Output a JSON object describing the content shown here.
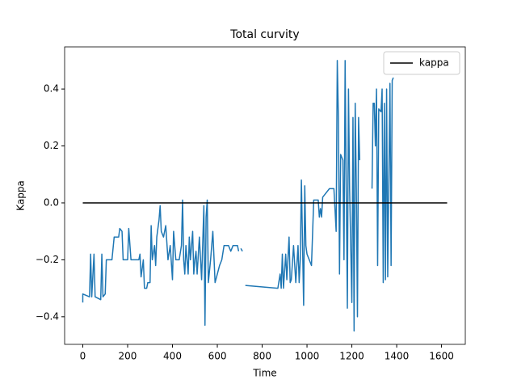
{
  "chart_data": {
    "type": "line",
    "title": "Total curvity",
    "x_label": "Time",
    "y_label": "Kappa",
    "xlim": [
      -81,
      1706
    ],
    "ylim": [
      -0.497,
      0.548
    ],
    "xticks": [
      0,
      200,
      400,
      600,
      800,
      1000,
      1200,
      1400,
      1600
    ],
    "yticks": [
      {
        "value": -0.4,
        "label": "−0.4"
      },
      {
        "value": -0.2,
        "label": "−0.2"
      },
      {
        "value": 0,
        "label": "0.0"
      },
      0.2,
      0.4
    ],
    "legend": "upper right",
    "grid": false,
    "series": [
      {
        "color": "#1f77b4",
        "x": [
          0,
          0,
          30,
          35,
          40,
          50,
          55,
          80,
          85,
          90,
          100,
          105,
          130,
          140,
          160,
          165,
          175,
          180,
          200,
          205,
          215,
          250,
          255,
          260,
          270,
          275,
          285,
          290,
          300,
          305,
          310,
          320,
          325,
          330,
          340,
          345,
          350,
          360,
          370,
          380,
          390,
          400,
          405,
          415,
          430,
          440,
          445,
          450,
          455,
          460,
          470,
          475,
          480,
          490,
          495,
          500,
          505,
          510,
          520,
          530,
          540,
          545,
          550,
          555,
          560,
          570,
          580,
          590,
          600,
          610,
          620,
          630,
          650,
          660,
          670,
          690,
          695,
          700,
          705,
          712,
          718,
          725,
          870,
          880,
          885,
          890,
          895,
          905,
          910,
          920,
          925,
          930,
          940,
          950,
          960,
          965,
          970,
          975,
          985,
          990,
          995,
          1000,
          1010,
          1020,
          1030,
          1040,
          1050,
          1055,
          1060,
          1065,
          1070,
          1100,
          1120,
          1130,
          1135,
          1140,
          1145,
          1150,
          1160,
          1165,
          1170,
          1175,
          1180,
          1185,
          1190,
          1200,
          1205,
          1210,
          1215,
          1220,
          1225,
          1230,
          1235,
          1260,
          1290,
          1295,
          1300,
          1305,
          1310,
          1315,
          1320,
          1330,
          1335,
          1340,
          1345,
          1350,
          1355,
          1360,
          1370,
          1375,
          1380,
          1385
        ],
        "values": [
          -0.35,
          -0.32,
          -0.33,
          -0.18,
          -0.33,
          -0.18,
          -0.33,
          -0.34,
          -0.18,
          -0.33,
          -0.32,
          -0.2,
          -0.2,
          -0.12,
          -0.12,
          -0.09,
          -0.1,
          -0.2,
          -0.2,
          -0.09,
          -0.2,
          -0.2,
          -0.18,
          -0.26,
          -0.2,
          -0.3,
          -0.3,
          -0.28,
          -0.28,
          -0.08,
          -0.2,
          -0.15,
          -0.22,
          -0.12,
          -0.06,
          -0.01,
          -0.1,
          -0.12,
          -0.08,
          -0.2,
          -0.15,
          -0.27,
          -0.1,
          -0.2,
          -0.2,
          -0.15,
          0.01,
          -0.2,
          -0.25,
          -0.15,
          -0.25,
          -0.12,
          -0.2,
          -0.1,
          -0.25,
          -0.2,
          -0.17,
          -0.25,
          -0.12,
          -0.27,
          -0.01,
          -0.43,
          -0.05,
          0.01,
          -0.28,
          -0.2,
          -0.1,
          -0.28,
          -0.25,
          -0.22,
          -0.2,
          -0.15,
          -0.15,
          -0.17,
          -0.15,
          -0.15,
          -0.17,
          null,
          -0.16,
          -0.17,
          null,
          -0.29,
          -0.3,
          -0.25,
          -0.3,
          -0.18,
          -0.3,
          -0.18,
          -0.27,
          -0.12,
          -0.28,
          -0.27,
          -0.15,
          -0.28,
          -0.15,
          -0.28,
          -0.2,
          0.08,
          -0.36,
          0.06,
          -0.15,
          -0.18,
          -0.2,
          -0.22,
          0.01,
          0.01,
          0.01,
          -0.05,
          -0.02,
          -0.05,
          0.02,
          0.05,
          0.05,
          -0.1,
          0.5,
          0.3,
          -0.25,
          0.17,
          0.15,
          -0.2,
          0.5,
          0.05,
          -0.37,
          0.4,
          0.05,
          -0.35,
          0.3,
          -0.45,
          0.35,
          0.05,
          -0.4,
          0.3,
          0.15,
          null,
          0.05,
          0.35,
          0.35,
          0.2,
          0.4,
          -0.22,
          0.33,
          0.32,
          0.4,
          -0.28,
          0.35,
          -0.27,
          0.4,
          -0.26,
          0.42,
          -0.22,
          0.43,
          0.44
        ]
      },
      {
        "name": "kappa",
        "color": "#000000",
        "x": [
          0,
          1625
        ],
        "values": [
          0,
          0
        ]
      }
    ]
  }
}
